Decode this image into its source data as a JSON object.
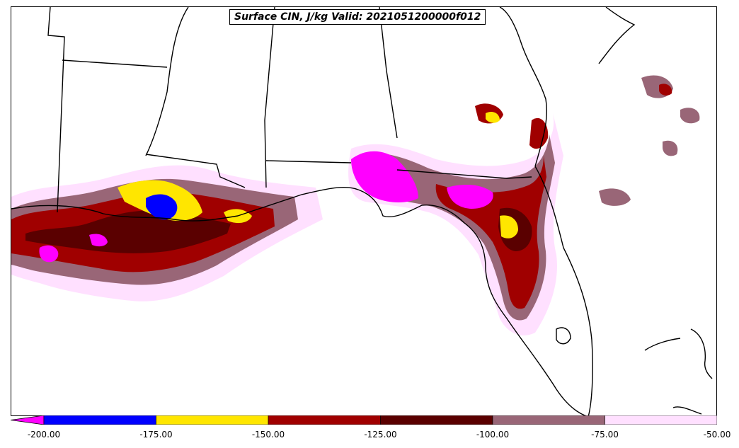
{
  "title": "Surface CIN, J/kg Valid: 2021051200000f012",
  "colorbar": {
    "extend": "min",
    "bins": [
      {
        "from": -200,
        "to": -175,
        "color": "#0000ff"
      },
      {
        "from": -175,
        "to": -150,
        "color": "#ffe600"
      },
      {
        "from": -150,
        "to": -125,
        "color": "#a00000"
      },
      {
        "from": -125,
        "to": -100,
        "color": "#5a0000"
      },
      {
        "from": -100,
        "to": -75,
        "color": "#996677"
      },
      {
        "from": -75,
        "to": -50,
        "color": "#ffe0ff"
      }
    ],
    "under_color": "#ff00ff",
    "ticks": [
      "-200.00",
      "-175.00",
      "-150.00",
      "-125.00",
      "-100.00",
      "-75.00",
      "-50.00"
    ]
  }
}
